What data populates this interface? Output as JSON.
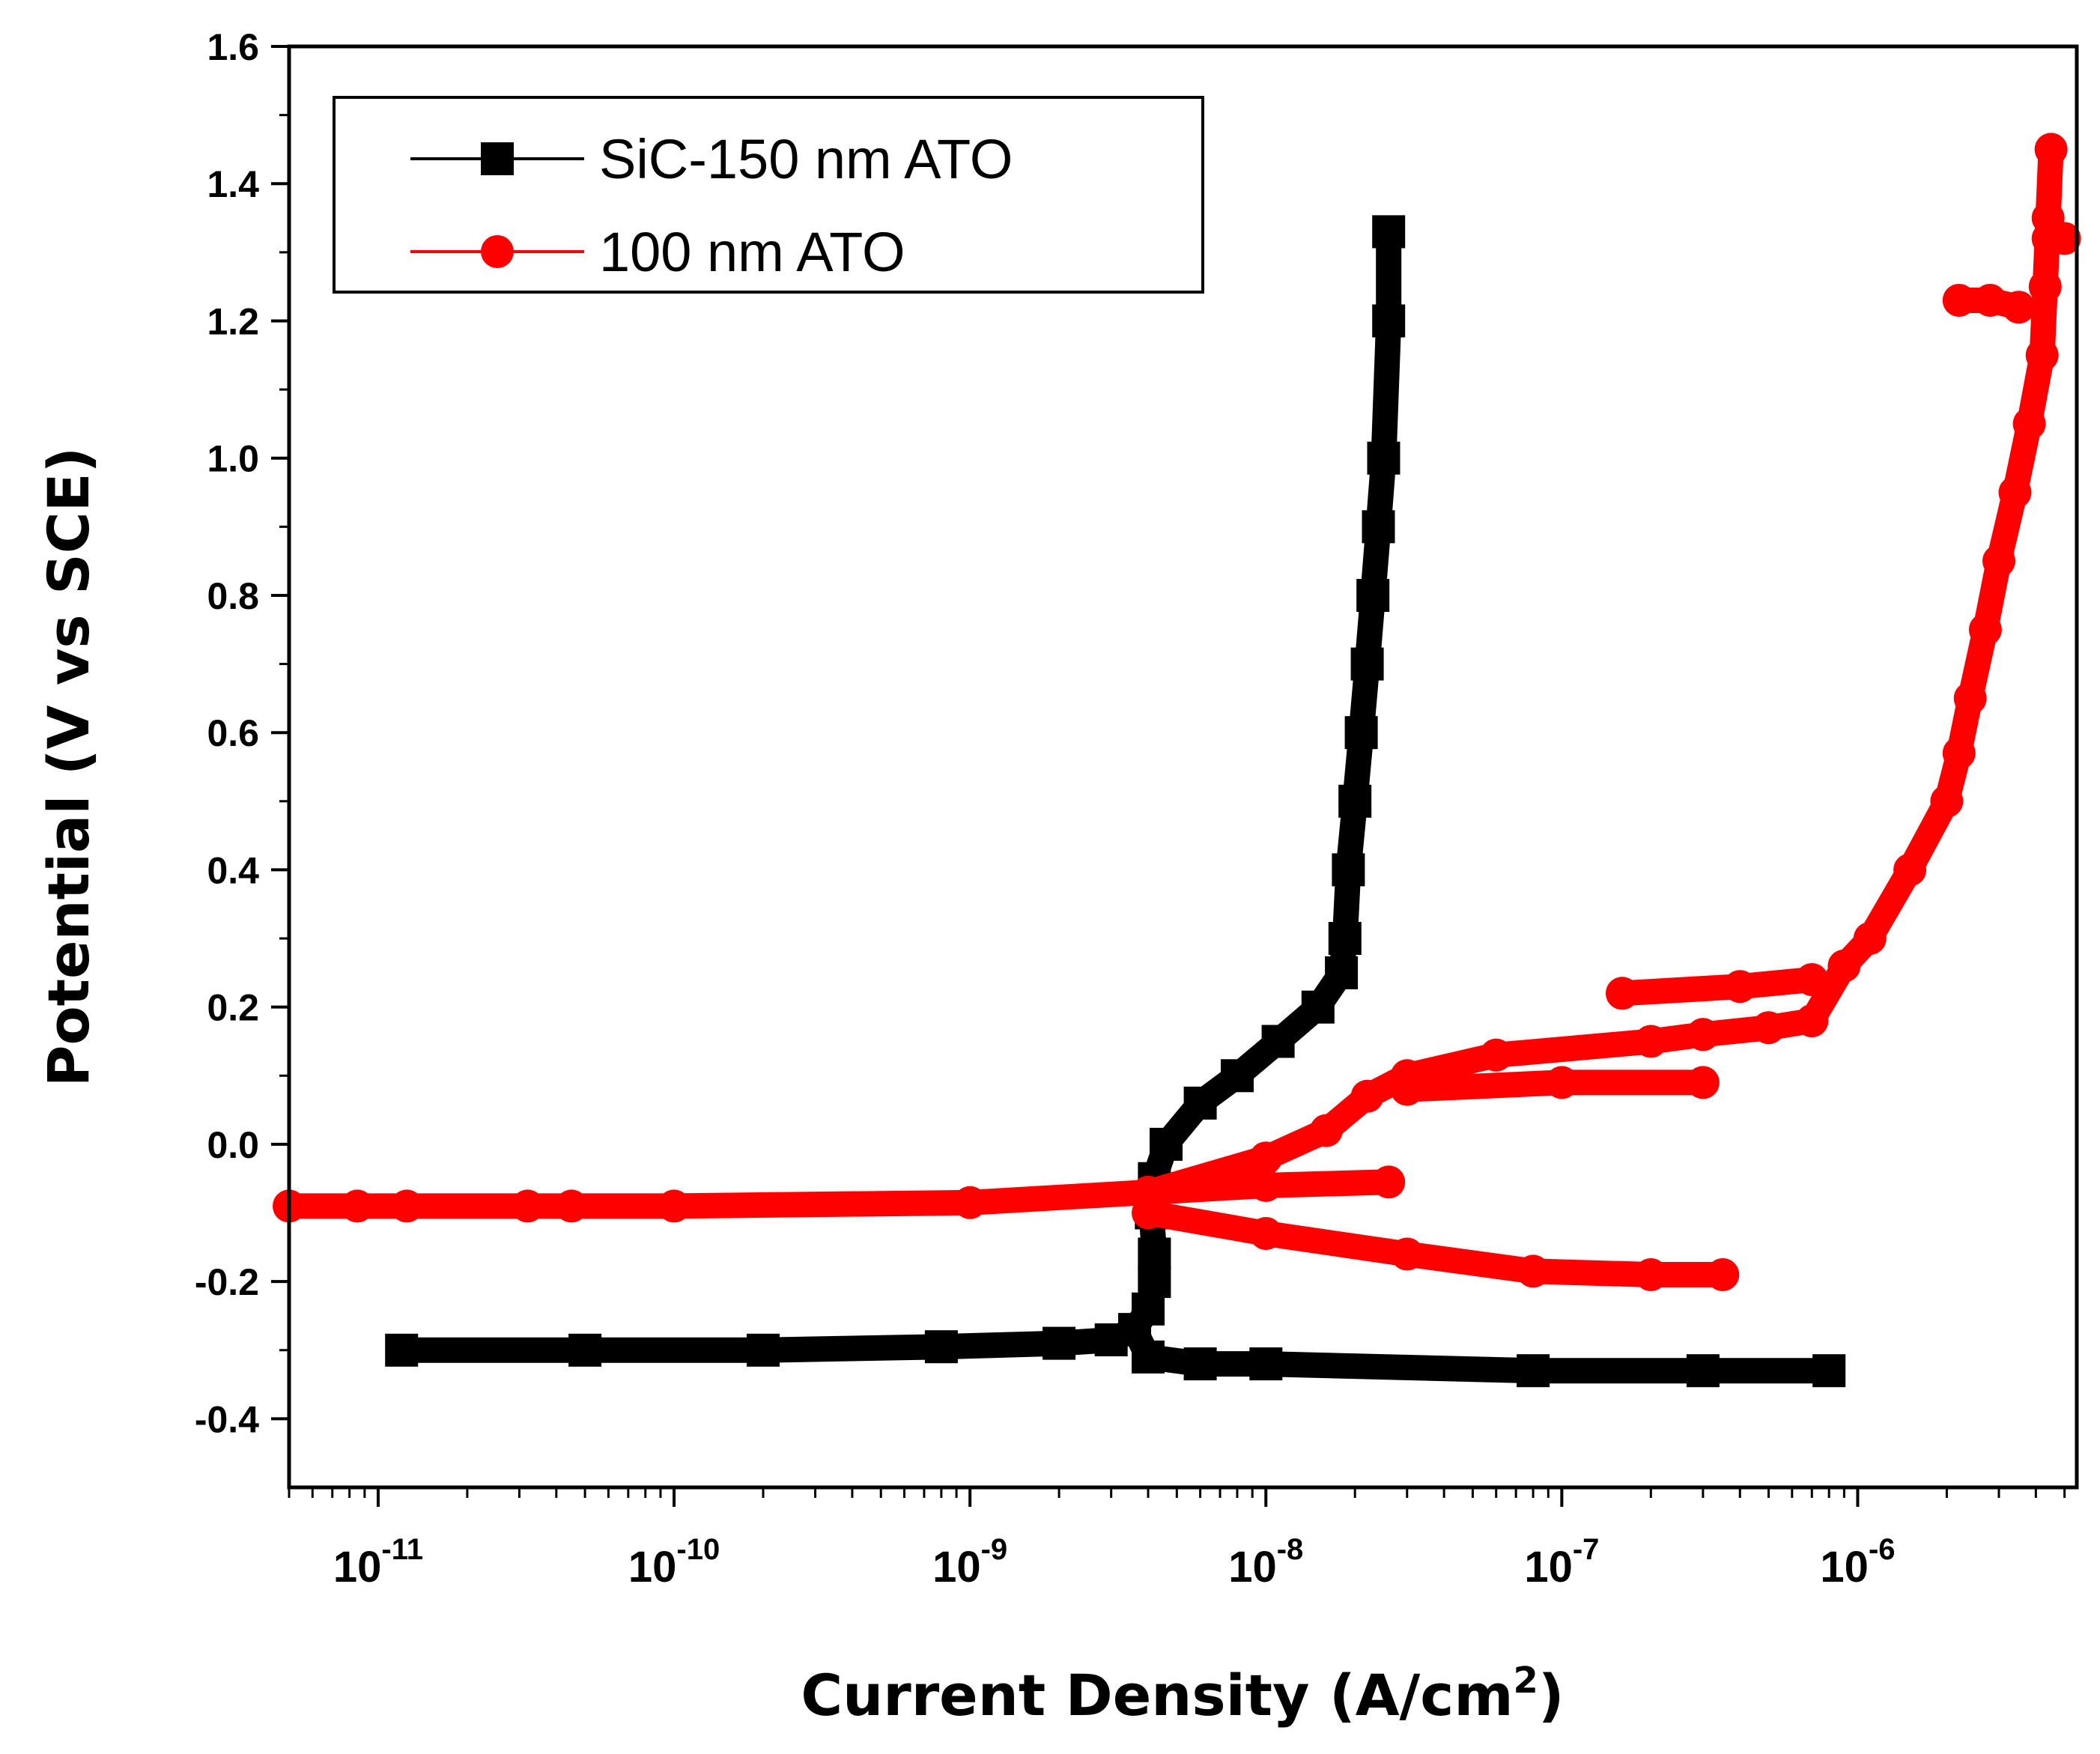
{
  "chart_data": {
    "type": "line",
    "title": "",
    "xlabel": "Current Density (A/cm",
    "xlabel_sup": "2",
    "xlabel_end": ")",
    "ylabel": "Potential (V vs SCE)",
    "xscale": "log",
    "xlim": [
      5e-12,
      5.5e-06
    ],
    "ylim": [
      -0.5,
      1.6
    ],
    "yticks": [
      -0.4,
      -0.2,
      0.0,
      0.2,
      0.4,
      0.6,
      0.8,
      1.0,
      1.2,
      1.4,
      1.6
    ],
    "ytick_labels": [
      "-0.4",
      "-0.2",
      "0.0",
      "0.2",
      "0.4",
      "0.6",
      "0.8",
      "1.0",
      "1.2",
      "1.4",
      "1.6"
    ],
    "xticks": [
      {
        "value": 1e-11,
        "base": "10",
        "exp": "-11"
      },
      {
        "value": 1e-10,
        "base": "10",
        "exp": "-10"
      },
      {
        "value": 1e-09,
        "base": "10",
        "exp": "-9"
      },
      {
        "value": 1e-08,
        "base": "10",
        "exp": "-8"
      },
      {
        "value": 1e-07,
        "base": "10",
        "exp": "-7"
      },
      {
        "value": 1e-06,
        "base": "10",
        "exp": "-6"
      }
    ],
    "legend_position": "top-left",
    "series": [
      {
        "name": "SiC-150 nm ATO",
        "color": "#000000",
        "marker": "square",
        "branches": [
          {
            "x": [
              1.2e-11,
              5e-11,
              2e-10,
              8e-10,
              2e-09,
              3e-09,
              3.6e-09
            ],
            "y": [
              -0.3,
              -0.3,
              -0.3,
              -0.295,
              -0.29,
              -0.285,
              -0.27
            ]
          },
          {
            "x": [
              3.6e-09,
              4e-09,
              6e-09,
              1e-08,
              8e-08,
              3e-07,
              8e-07
            ],
            "y": [
              -0.27,
              -0.31,
              -0.32,
              -0.32,
              -0.33,
              -0.33,
              -0.33
            ]
          },
          {
            "x": [
              3.6e-09,
              4e-09,
              4.2e-09,
              4.2e-09,
              4.1e-09,
              4.2e-09,
              4.6e-09,
              6e-09,
              8e-09,
              1.1e-08,
              1.5e-08,
              1.8e-08,
              1.85e-08,
              1.9e-08,
              2e-08,
              2.1e-08,
              2.2e-08,
              2.3e-08,
              2.4e-08,
              2.5e-08,
              2.6e-08,
              2.6e-08
            ],
            "y": [
              -0.27,
              -0.24,
              -0.2,
              -0.16,
              -0.1,
              -0.05,
              0.0,
              0.06,
              0.1,
              0.15,
              0.2,
              0.25,
              0.3,
              0.4,
              0.5,
              0.6,
              0.7,
              0.8,
              0.9,
              1.0,
              1.2,
              1.33
            ]
          }
        ]
      },
      {
        "name": "100 nm ATO",
        "color": "#ff0000",
        "marker": "circle",
        "branches": [
          {
            "x": [
              5e-12,
              8.5e-12,
              1.25e-11,
              3.2e-11,
              4.5e-11,
              1e-10,
              1e-09,
              4e-09,
              1e-08,
              2.6e-08
            ],
            "y": [
              -0.09,
              -0.09,
              -0.09,
              -0.09,
              -0.09,
              -0.09,
              -0.085,
              -0.07,
              -0.06,
              -0.055
            ]
          },
          {
            "x": [
              4e-09,
              1e-08,
              3e-08,
              8e-08,
              2e-07,
              3.5e-07
            ],
            "y": [
              -0.1,
              -0.13,
              -0.16,
              -0.185,
              -0.19,
              -0.19
            ]
          },
          {
            "x": [
              4e-09,
              1e-08,
              1.6e-08,
              2.2e-08,
              3e-08,
              6e-08,
              2e-07,
              3e-07
            ],
            "y": [
              -0.07,
              -0.02,
              0.02,
              0.07,
              0.1,
              0.13,
              0.15,
              0.16
            ]
          },
          {
            "x": [
              3e-08,
              1e-07,
              3e-07
            ],
            "y": [
              0.08,
              0.09,
              0.09
            ]
          },
          {
            "x": [
              3e-07,
              5e-07,
              7e-07
            ],
            "y": [
              0.16,
              0.17,
              0.18
            ]
          },
          {
            "x": [
              1.6e-07,
              4e-07,
              7e-07
            ],
            "y": [
              0.22,
              0.23,
              0.24
            ]
          },
          {
            "x": [
              7e-07,
              9e-07,
              1.1e-06,
              1.5e-06,
              2e-06,
              2.2e-06,
              2.4e-06,
              2.7e-06,
              3e-06,
              3.4e-06,
              3.8e-06,
              4.2e-06,
              4.3e-06,
              4.4e-06,
              4.5e-06
            ],
            "y": [
              0.18,
              0.26,
              0.3,
              0.4,
              0.5,
              0.57,
              0.65,
              0.75,
              0.85,
              0.95,
              1.05,
              1.15,
              1.25,
              1.35,
              1.45
            ]
          },
          {
            "x": [
              2.2e-06,
              2.8e-06,
              3.5e-06
            ],
            "y": [
              1.23,
              1.23,
              1.22
            ]
          },
          {
            "x": [
              4.4e-06,
              5e-06
            ],
            "y": [
              1.32,
              1.32
            ]
          }
        ]
      }
    ]
  }
}
